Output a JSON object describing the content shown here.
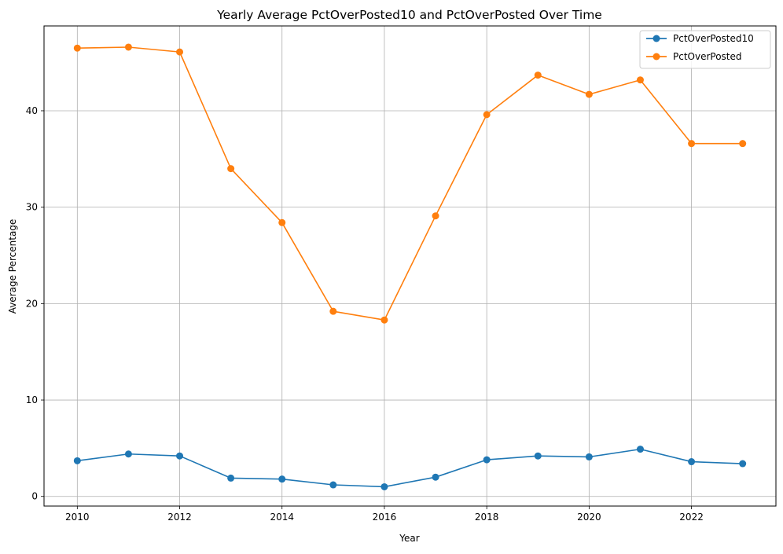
{
  "chart_data": {
    "type": "line",
    "title": "Yearly Average PctOverPosted10 and PctOverPosted Over Time",
    "xlabel": "Year",
    "ylabel": "Average Percentage",
    "x": [
      2010,
      2011,
      2012,
      2013,
      2014,
      2015,
      2016,
      2017,
      2018,
      2019,
      2020,
      2021,
      2022,
      2023
    ],
    "xlim": [
      2009.35,
      2023.65
    ],
    "ylim": [
      -1.0,
      48.8
    ],
    "xticks": [
      2010,
      2012,
      2014,
      2016,
      2018,
      2020,
      2022
    ],
    "xtick_labels": [
      "2010",
      "2012",
      "2014",
      "2016",
      "2018",
      "2020",
      "2022"
    ],
    "yticks": [
      0,
      10,
      20,
      30,
      40
    ],
    "ytick_labels": [
      "0",
      "10",
      "20",
      "30",
      "40"
    ],
    "grid": true,
    "legend_position": "top-right",
    "series": [
      {
        "name": "PctOverPosted10",
        "color": "#1f77b4",
        "marker": "circle",
        "values": [
          3.7,
          4.4,
          4.2,
          1.9,
          1.8,
          1.2,
          1.0,
          2.0,
          3.8,
          4.2,
          4.1,
          4.9,
          3.6,
          3.4
        ]
      },
      {
        "name": "PctOverPosted",
        "color": "#ff7f0e",
        "marker": "circle",
        "values": [
          46.5,
          46.6,
          46.1,
          34.0,
          28.4,
          19.2,
          18.3,
          29.1,
          39.6,
          43.7,
          41.7,
          43.2,
          36.6,
          36.6
        ]
      }
    ]
  }
}
